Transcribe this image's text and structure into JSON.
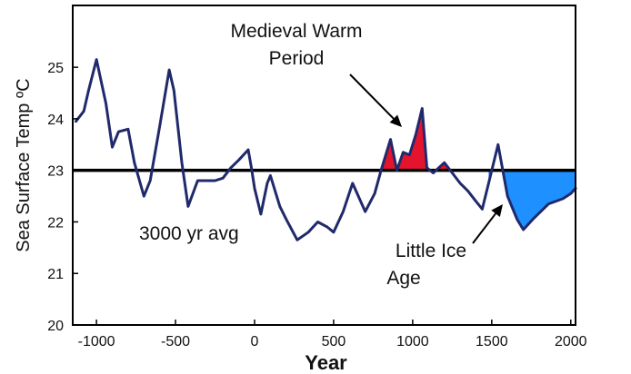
{
  "chart_data": {
    "type": "line",
    "title": "",
    "xlabel": "Year",
    "ylabel": "Sea Surface Temp ºC",
    "xlim": [
      -1150,
      2030
    ],
    "ylim": [
      20,
      26.2
    ],
    "xticks": [
      -1000,
      -500,
      0,
      500,
      1000,
      1500,
      2000
    ],
    "xtick_labels": [
      "-1000",
      "-500",
      "0",
      "500",
      "1000",
      "1500",
      "2000"
    ],
    "yticks": [
      20,
      21,
      22,
      23,
      24,
      25
    ],
    "ytick_labels": [
      "20",
      "21",
      "22",
      "23",
      "24",
      "25"
    ],
    "grid": false,
    "series": [
      {
        "x": [
          -1130,
          -1080,
          -1050,
          -1000,
          -940,
          -900,
          -860,
          -800,
          -760,
          -700,
          -660,
          -600,
          -540,
          -510,
          -460,
          -420,
          -360,
          -300,
          -250,
          -200,
          -150,
          -100,
          -40,
          -20,
          0,
          40,
          80,
          100,
          160,
          200,
          270,
          340,
          400,
          460,
          500,
          560,
          620,
          700,
          760,
          800,
          860,
          900,
          940,
          980,
          1020,
          1060,
          1090,
          1130,
          1200,
          1250,
          1300,
          1350,
          1400,
          1440,
          1480,
          1540,
          1600,
          1660,
          1700,
          1760,
          1860,
          1950,
          2000,
          2030
        ],
        "y": [
          23.95,
          24.15,
          24.55,
          25.15,
          24.3,
          23.45,
          23.75,
          23.8,
          23.15,
          22.5,
          22.8,
          23.85,
          24.95,
          24.55,
          23.15,
          22.3,
          22.8,
          22.8,
          22.8,
          22.85,
          23.05,
          23.2,
          23.4,
          23.05,
          22.65,
          22.15,
          22.75,
          22.9,
          22.3,
          22.05,
          21.65,
          21.8,
          22.0,
          21.9,
          21.8,
          22.2,
          22.75,
          22.2,
          22.55,
          23.0,
          23.6,
          23.0,
          23.35,
          23.3,
          23.7,
          24.2,
          23.05,
          22.95,
          23.15,
          22.95,
          22.75,
          22.6,
          22.4,
          22.25,
          22.75,
          23.5,
          22.5,
          22.05,
          21.85,
          22.05,
          22.35,
          22.45,
          22.55,
          22.65
        ]
      }
    ],
    "reference_line": {
      "y": 23
    },
    "annotations": [
      {
        "lines": [
          "Medieval Warm",
          "Period"
        ]
      },
      {
        "lines": [
          "Little Ice",
          "Age"
        ]
      },
      {
        "lines": [
          "3000 yr avg"
        ]
      }
    ],
    "colors": {
      "line": "#202a6b",
      "reference": "#000000",
      "warm_fill": "#e4142e",
      "cold_fill": "#1e90ff",
      "text": "#111111"
    }
  }
}
